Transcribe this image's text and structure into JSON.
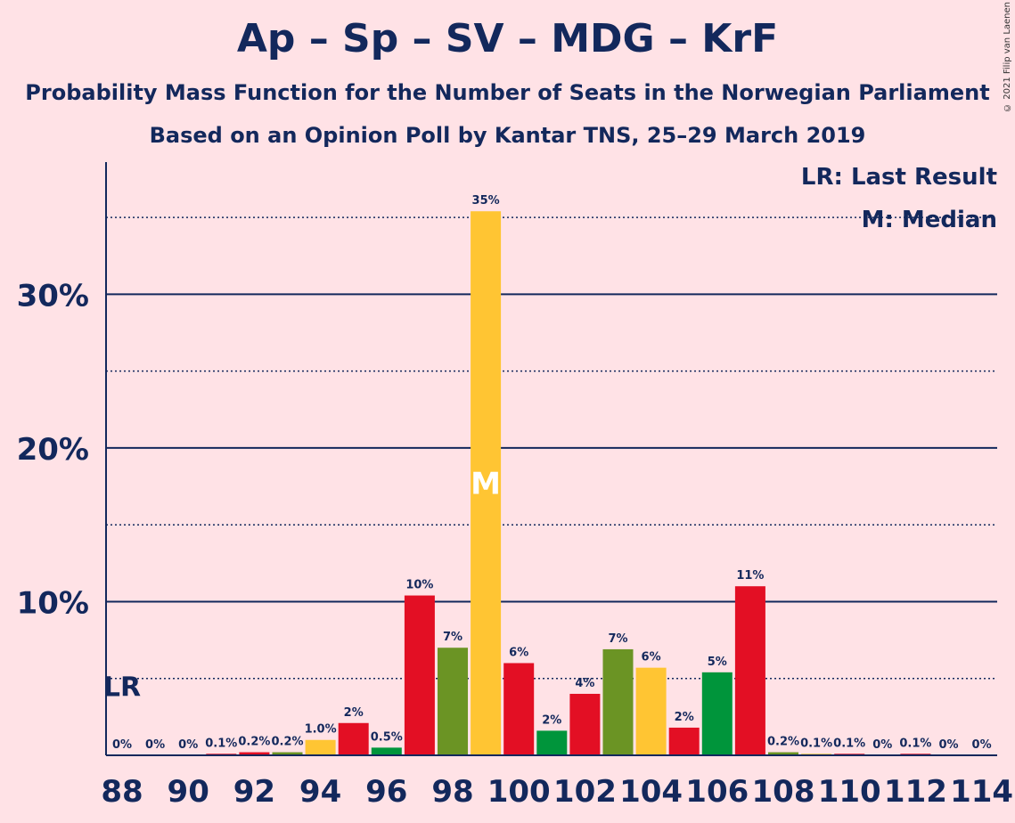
{
  "title": "Ap – Sp – SV – MDG – KrF",
  "subtitle": "Probability Mass Function for the Number of Seats in the Norwegian Parliament",
  "subtitle2": "Based on an Opinion Poll by Kantar TNS, 25–29 March 2019",
  "copyright": "© 2021 Filip van Laenen",
  "legend": {
    "last_result": "LR: Last Result",
    "median": "M: Median"
  },
  "colors": {
    "background": "#ffe2e6",
    "text": "#13285c",
    "red": "#e30f24",
    "green": "#6b9424",
    "yellow": "#ffc533",
    "darkgreen": "#00953b"
  },
  "chart_data": {
    "type": "bar",
    "categories": [
      88,
      89,
      90,
      91,
      92,
      93,
      94,
      95,
      96,
      97,
      98,
      99,
      100,
      101,
      102,
      103,
      104,
      105,
      106,
      107,
      108,
      109,
      110,
      111,
      112,
      113,
      114
    ],
    "values": [
      0,
      0,
      0,
      0.1,
      0.2,
      0.2,
      1.0,
      2.1,
      0.5,
      10.4,
      7.0,
      35.4,
      6.0,
      1.6,
      4.0,
      6.9,
      5.7,
      1.8,
      5.4,
      11.0,
      0.2,
      0.1,
      0.1,
      0,
      0.1,
      0,
      0
    ],
    "labels": [
      "0%",
      "0%",
      "0%",
      "0.1%",
      "0.2%",
      "0.2%",
      "1.0%",
      "2%",
      "0.5%",
      "10%",
      "7%",
      "35%",
      "6%",
      "2%",
      "4%",
      "7%",
      "6%",
      "2%",
      "5%",
      "11%",
      "0.2%",
      "0.1%",
      "0.1%",
      "0%",
      "0.1%",
      "0%",
      "0%"
    ],
    "bar_colors": [
      "red",
      "green",
      "yellow",
      "red",
      "red",
      "green",
      "yellow",
      "red",
      "darkgreen",
      "red",
      "green",
      "yellow",
      "red",
      "darkgreen",
      "red",
      "green",
      "yellow",
      "red",
      "darkgreen",
      "red",
      "green",
      "yellow",
      "red",
      "darkgreen",
      "red",
      "green",
      "yellow"
    ],
    "x_tick_labels": [
      "88",
      "90",
      "92",
      "94",
      "96",
      "98",
      "100",
      "102",
      "104",
      "106",
      "108",
      "110",
      "112",
      "114"
    ],
    "y_tick_labels": [
      "10%",
      "20%",
      "30%"
    ],
    "y_ticks": [
      10,
      20,
      30
    ],
    "y_minor_ticks": [
      5,
      15,
      25,
      35
    ],
    "ylim": [
      0,
      38.6
    ],
    "median_seat": 99,
    "median_marker": "M",
    "last_result_seat": 88,
    "last_result_marker": "LR",
    "last_result_value": 5
  }
}
